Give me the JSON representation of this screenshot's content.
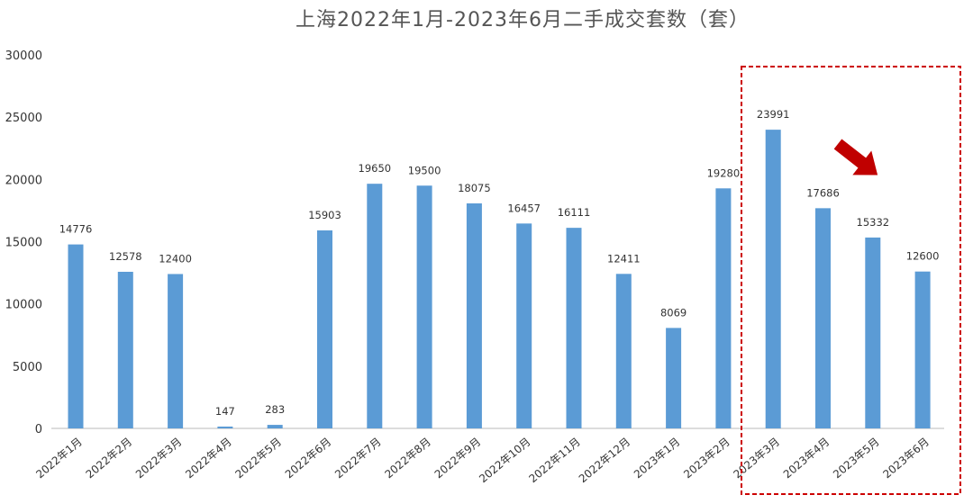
{
  "chart_data": {
    "type": "bar",
    "title": "上海2022年1月-2023年6月二手成交套数（套）",
    "xlabel": "",
    "ylabel": "",
    "ylim": [
      0,
      30000
    ],
    "yticks": [
      0,
      5000,
      10000,
      15000,
      20000,
      25000,
      30000
    ],
    "grid": false,
    "categories": [
      "2022年1月",
      "2022年2月",
      "2022年3月",
      "2022年4月",
      "2022年5月",
      "2022年6月",
      "2022年7月",
      "2022年8月",
      "2022年9月",
      "2022年10月",
      "2022年11月",
      "2022年12月",
      "2023年1月",
      "2023年2月",
      "2023年3月",
      "2023年4月",
      "2023年5月",
      "2023年6月"
    ],
    "values": [
      14776,
      12578,
      12400,
      147,
      283,
      15903,
      19650,
      19500,
      18075,
      16457,
      16111,
      12411,
      8069,
      19280,
      23991,
      17686,
      15332,
      12600
    ],
    "bar_color": "#5b9bd5",
    "highlight": {
      "range_categories": [
        "2023年3月",
        "2023年6月"
      ],
      "box_color": "#cc0000",
      "arrow_color": "#c00000"
    }
  }
}
